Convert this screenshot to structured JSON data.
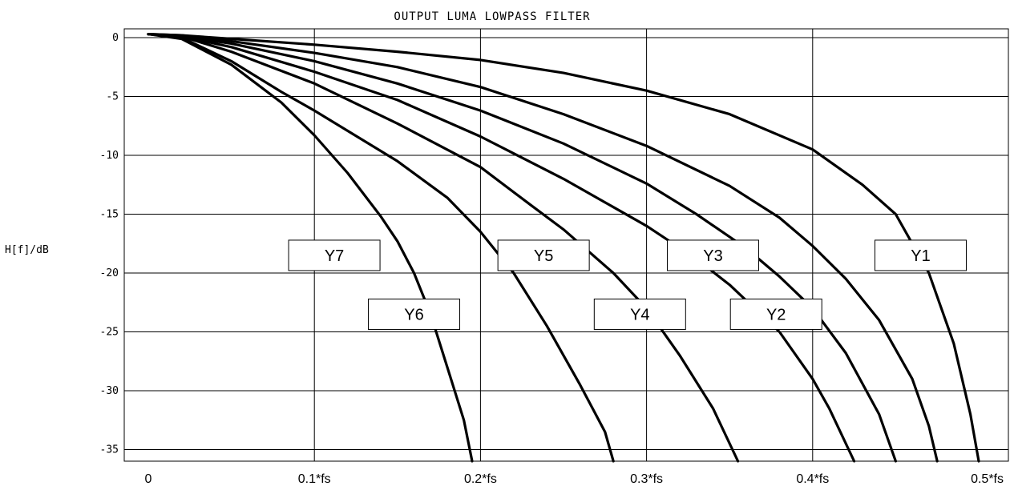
{
  "chart_data": {
    "type": "line",
    "title": "OUTPUT LUMA LOWPASS FILTER",
    "ylabel": "H[f]/dB",
    "xlabel": "",
    "xlim": [
      0,
      0.5
    ],
    "ylim": [
      -36,
      1
    ],
    "grid": true,
    "x_ticks": [
      {
        "value": 0,
        "label": "0"
      },
      {
        "value": 0.1,
        "label": "0.1*fs"
      },
      {
        "value": 0.2,
        "label": "0.2*fs"
      },
      {
        "value": 0.3,
        "label": "0.3*fs"
      },
      {
        "value": 0.4,
        "label": "0.4*fs"
      },
      {
        "value": 0.5,
        "label": "0.5*fs"
      }
    ],
    "y_ticks": [
      {
        "value": 0,
        "label": "0"
      },
      {
        "value": -5,
        "label": "-5"
      },
      {
        "value": -10,
        "label": "-10"
      },
      {
        "value": -15,
        "label": "-15"
      },
      {
        "value": -20,
        "label": "-20"
      },
      {
        "value": -25,
        "label": "-25"
      },
      {
        "value": -30,
        "label": "-30"
      },
      {
        "value": -35,
        "label": "-35"
      }
    ],
    "series": [
      {
        "name": "Y1",
        "label_at": [
          0.465,
          -18.5
        ],
        "points": [
          [
            0,
            0.3
          ],
          [
            0.02,
            0.2
          ],
          [
            0.05,
            -0.1
          ],
          [
            0.1,
            -0.6
          ],
          [
            0.15,
            -1.2
          ],
          [
            0.2,
            -1.9
          ],
          [
            0.25,
            -3.0
          ],
          [
            0.3,
            -4.5
          ],
          [
            0.35,
            -6.5
          ],
          [
            0.4,
            -9.5
          ],
          [
            0.43,
            -12.5
          ],
          [
            0.45,
            -15.0
          ],
          [
            0.47,
            -20.0
          ],
          [
            0.485,
            -26.0
          ],
          [
            0.495,
            -32.0
          ],
          [
            0.5,
            -36.0
          ]
        ]
      },
      {
        "name": "Y2",
        "label_at": [
          0.378,
          -23.5
        ],
        "points": [
          [
            0,
            0.3
          ],
          [
            0.02,
            0.2
          ],
          [
            0.05,
            -0.3
          ],
          [
            0.1,
            -1.3
          ],
          [
            0.15,
            -2.5
          ],
          [
            0.2,
            -4.2
          ],
          [
            0.25,
            -6.5
          ],
          [
            0.3,
            -9.2
          ],
          [
            0.35,
            -12.6
          ],
          [
            0.38,
            -15.3
          ],
          [
            0.4,
            -17.7
          ],
          [
            0.42,
            -20.5
          ],
          [
            0.44,
            -24.0
          ],
          [
            0.46,
            -29.0
          ],
          [
            0.47,
            -33.0
          ],
          [
            0.475,
            -36.0
          ]
        ]
      },
      {
        "name": "Y3",
        "label_at": [
          0.34,
          -18.5
        ],
        "points": [
          [
            0,
            0.3
          ],
          [
            0.02,
            0.1
          ],
          [
            0.05,
            -0.5
          ],
          [
            0.1,
            -2.0
          ],
          [
            0.15,
            -3.9
          ],
          [
            0.2,
            -6.2
          ],
          [
            0.25,
            -9.0
          ],
          [
            0.3,
            -12.4
          ],
          [
            0.33,
            -15.0
          ],
          [
            0.36,
            -17.9
          ],
          [
            0.38,
            -20.3
          ],
          [
            0.4,
            -23.0
          ],
          [
            0.42,
            -26.8
          ],
          [
            0.44,
            -32.0
          ],
          [
            0.45,
            -36.0
          ]
        ]
      },
      {
        "name": "Y4",
        "label_at": [
          0.296,
          -23.5
        ],
        "points": [
          [
            0,
            0.3
          ],
          [
            0.02,
            0.1
          ],
          [
            0.05,
            -0.8
          ],
          [
            0.1,
            -2.9
          ],
          [
            0.15,
            -5.3
          ],
          [
            0.2,
            -8.4
          ],
          [
            0.25,
            -12.0
          ],
          [
            0.3,
            -16.0
          ],
          [
            0.33,
            -18.8
          ],
          [
            0.35,
            -21.0
          ],
          [
            0.38,
            -25.0
          ],
          [
            0.4,
            -29.0
          ],
          [
            0.41,
            -31.5
          ],
          [
            0.425,
            -36.0
          ]
        ]
      },
      {
        "name": "Y5",
        "label_at": [
          0.238,
          -18.5
        ],
        "points": [
          [
            0,
            0.3
          ],
          [
            0.02,
            0.1
          ],
          [
            0.05,
            -1.2
          ],
          [
            0.1,
            -3.9
          ],
          [
            0.15,
            -7.3
          ],
          [
            0.2,
            -11.0
          ],
          [
            0.23,
            -14.2
          ],
          [
            0.25,
            -16.3
          ],
          [
            0.28,
            -20.0
          ],
          [
            0.3,
            -23.0
          ],
          [
            0.32,
            -27.0
          ],
          [
            0.34,
            -31.5
          ],
          [
            0.355,
            -36.0
          ]
        ]
      },
      {
        "name": "Y6",
        "label_at": [
          0.16,
          -23.5
        ],
        "points": [
          [
            0,
            0.3
          ],
          [
            0.02,
            0.0
          ],
          [
            0.05,
            -2.0
          ],
          [
            0.08,
            -4.6
          ],
          [
            0.1,
            -6.2
          ],
          [
            0.15,
            -10.5
          ],
          [
            0.18,
            -13.6
          ],
          [
            0.2,
            -16.5
          ],
          [
            0.22,
            -20.0
          ],
          [
            0.24,
            -24.5
          ],
          [
            0.26,
            -29.5
          ],
          [
            0.275,
            -33.5
          ],
          [
            0.28,
            -36.0
          ]
        ]
      },
      {
        "name": "Y7",
        "label_at": [
          0.112,
          -18.5
        ],
        "points": [
          [
            0,
            0.3
          ],
          [
            0.02,
            -0.1
          ],
          [
            0.05,
            -2.3
          ],
          [
            0.08,
            -5.5
          ],
          [
            0.1,
            -8.3
          ],
          [
            0.12,
            -11.5
          ],
          [
            0.14,
            -15.2
          ],
          [
            0.15,
            -17.3
          ],
          [
            0.16,
            -20.0
          ],
          [
            0.17,
            -23.5
          ],
          [
            0.18,
            -28.0
          ],
          [
            0.19,
            -32.5
          ],
          [
            0.195,
            -36.0
          ]
        ]
      }
    ]
  }
}
